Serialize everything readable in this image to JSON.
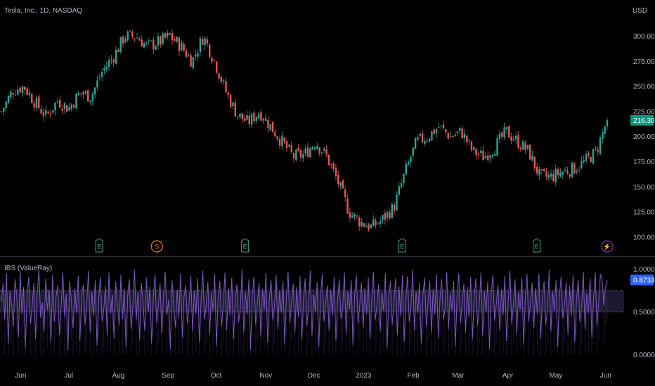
{
  "header": {
    "title": "Tesla, Inc., 1D, NASDAQ",
    "currency": "USD"
  },
  "colors": {
    "up": "#26a69a",
    "down": "#ef5350",
    "indicator": "#7e57c2",
    "band": "#1b1a2e",
    "last_price_bg": "#089981",
    "ibs_badge_bg": "#2962ff",
    "dividend": "#f57c00",
    "split": "#9c27b0"
  },
  "chart_data": [
    {
      "type": "candlestick",
      "title": "Tesla, Inc., 1D, NASDAQ",
      "ylabel": "USD",
      "ylim": [
        95,
        322
      ],
      "yticks": [
        "100.00",
        "125.00",
        "150.00",
        "175.00",
        "200.00",
        "225.00",
        "250.00",
        "275.00",
        "300.00"
      ],
      "last_price": "216.30",
      "close_path": [
        [
          "2022-05-20",
          225
        ],
        [
          "2022-05-27",
          246
        ],
        [
          "2022-06-03",
          250
        ],
        [
          "2022-06-10",
          234
        ],
        [
          "2022-06-17",
          220
        ],
        [
          "2022-06-24",
          236
        ],
        [
          "2022-07-01",
          228
        ],
        [
          "2022-07-08",
          244
        ],
        [
          "2022-07-15",
          240
        ],
        [
          "2022-07-22",
          265
        ],
        [
          "2022-07-29",
          280
        ],
        [
          "2022-08-05",
          300
        ],
        [
          "2022-08-12",
          300
        ],
        [
          "2022-08-19",
          290
        ],
        [
          "2022-08-26",
          294
        ],
        [
          "2022-09-02",
          300
        ],
        [
          "2022-09-09",
          290
        ],
        [
          "2022-09-16",
          275
        ],
        [
          "2022-09-23",
          300
        ],
        [
          "2022-09-30",
          275
        ],
        [
          "2022-10-07",
          245
        ],
        [
          "2022-10-14",
          222
        ],
        [
          "2022-10-21",
          214
        ],
        [
          "2022-10-28",
          225
        ],
        [
          "2022-11-04",
          210
        ],
        [
          "2022-11-11",
          195
        ],
        [
          "2022-11-18",
          180
        ],
        [
          "2022-11-25",
          182
        ],
        [
          "2022-12-02",
          195
        ],
        [
          "2022-12-09",
          180
        ],
        [
          "2022-12-16",
          155
        ],
        [
          "2022-12-23",
          125
        ],
        [
          "2022-12-30",
          115
        ],
        [
          "2023-01-06",
          110
        ],
        [
          "2023-01-13",
          118
        ],
        [
          "2023-01-20",
          130
        ],
        [
          "2023-01-27",
          165
        ],
        [
          "2023-02-03",
          195
        ],
        [
          "2023-02-10",
          200
        ],
        [
          "2023-02-17",
          210
        ],
        [
          "2023-02-24",
          200
        ],
        [
          "2023-03-03",
          205
        ],
        [
          "2023-03-10",
          185
        ],
        [
          "2023-03-17",
          180
        ],
        [
          "2023-03-24",
          190
        ],
        [
          "2023-03-31",
          205
        ],
        [
          "2023-04-07",
          195
        ],
        [
          "2023-04-14",
          185
        ],
        [
          "2023-04-21",
          160
        ],
        [
          "2023-04-28",
          160
        ],
        [
          "2023-05-05",
          165
        ],
        [
          "2023-05-12",
          168
        ],
        [
          "2023-05-19",
          175
        ],
        [
          "2023-05-26",
          185
        ],
        [
          "2023-06-02",
          216.3
        ]
      ],
      "events": [
        {
          "date": "2022-07-20",
          "type": "earnings",
          "label": "E"
        },
        {
          "date": "2022-08-25",
          "type": "dividend",
          "label": "S"
        },
        {
          "date": "2022-10-19",
          "type": "earnings",
          "label": "E"
        },
        {
          "date": "2023-01-25",
          "type": "earnings",
          "label": "E"
        },
        {
          "date": "2023-04-19",
          "type": "earnings",
          "label": "E"
        },
        {
          "date": "2023-06-02",
          "type": "split",
          "label": "⚡"
        }
      ]
    },
    {
      "type": "line",
      "title": "IBS (ValueRay)",
      "ylim": [
        -0.02,
        1.02
      ],
      "yticks": [
        "0.0000",
        "0.5000",
        "1.0000"
      ],
      "last_value": "0.8733",
      "upper_band": 0.75,
      "lower_band": 0.5,
      "series": [
        {
          "values": [
            0.62,
            0.83,
            0.41,
            0.95,
            0.12,
            0.74,
            0.58,
            0.33,
            0.88,
            0.69,
            0.21,
            0.97,
            0.47,
            0.79,
            0.08,
            0.66,
            0.91,
            0.36,
            0.55,
            0.84,
            0.18,
            0.72,
            0.99,
            0.43,
            0.61,
            0.27,
            0.89,
            0.52,
            0.76,
            0.14,
            0.93,
            0.38,
            0.67,
            0.81,
            0.23,
            0.57,
            0.96,
            0.44,
            0.71,
            0.05,
            0.86,
            0.63,
            0.31,
            0.78,
            0.49,
            0.92,
            0.16,
            0.68,
            0.82,
            0.35,
            0.59,
            0.98,
            0.26,
            0.74,
            0.45,
            0.87,
            0.11,
            0.65,
            0.91,
            0.39,
            0.53,
            0.8,
            0.22,
            0.96,
            0.48,
            0.7,
            0.19,
            0.85,
            0.6,
            0.34,
            0.93,
            0.42,
            0.77,
            0.09,
            0.69,
            0.88,
            0.3,
            0.56,
            0.99,
            0.4,
            0.73,
            0.17,
            0.84,
            0.62,
            0.28,
            0.9,
            0.5,
            0.79,
            0.13,
            0.66,
            0.94,
            0.37,
            0.58,
            0.83,
            0.24,
            0.71,
            0.97,
            0.46,
            0.64,
            0.07,
            0.87,
            0.55,
            0.32,
            0.76,
            0.43,
            0.95,
            0.2,
            0.68,
            0.81,
            0.36,
            0.6,
            0.92,
            0.27,
            0.75,
            0.48,
            0.89,
            0.15,
            0.63,
            0.98,
            0.41,
            0.57,
            0.85,
            0.23,
            0.72,
            0.51,
            0.94,
            0.1,
            0.67,
            0.86,
            0.33,
            0.59,
            0.96,
            0.29,
            0.78,
            0.45,
            0.9,
            0.18,
            0.65,
            0.82,
            0.38,
            0.54,
            0.99,
            0.25,
            0.73,
            0.47,
            0.88,
            0.06,
            0.7,
            0.91,
            0.35,
            0.61,
            0.84,
            0.21,
            0.77,
            0.52,
            0.95,
            0.14,
            0.66,
            0.87,
            0.4,
            0.56,
            0.93,
            0.3,
            0.74,
            0.49,
            0.86,
            0.12,
            0.69,
            0.97,
            0.37,
            0.62,
            0.83,
            0.26,
            0.79,
            0.44,
            0.92,
            0.17,
            0.64,
            0.89,
            0.34,
            0.58,
            0.98,
            0.22,
            0.71,
            0.5,
            0.85,
            0.09,
            0.68,
            0.94,
            0.39,
            0.6,
            0.81,
            0.28,
            0.76,
            0.46,
            0.91,
            0.16,
            0.63,
            0.88,
            0.42,
            0.55,
            0.96,
            0.24,
            0.75,
            0.53,
            0.87,
            0.11,
            0.7,
            0.93,
            0.36,
            0.59,
            0.84,
            0.31,
            0.78,
            0.48,
            0.9,
            0.19,
            0.66,
            0.97,
            0.4,
            0.57,
            0.82,
            0.27,
            0.73,
            0.51,
            0.95,
            0.08,
            0.67,
            0.86,
            0.35,
            0.61,
            0.89,
            0.23,
            0.8,
            0.45,
            0.93,
            0.15,
            0.64,
            0.92,
            0.38,
            0.56,
            0.99,
            0.29,
            0.74,
            0.49,
            0.84,
            0.13,
            0.69,
            0.9,
            0.33,
            0.62,
            0.87,
            0.25,
            0.77,
            0.47,
            0.94,
            0.2,
            0.65,
            0.88,
            0.41,
            0.54,
            0.97,
            0.3,
            0.72,
            0.52,
            0.86,
            0.1,
            0.68,
            0.95,
            0.37,
            0.6,
            0.83,
            0.26,
            0.79,
            0.44,
            0.91,
            0.18,
            0.66,
            0.89,
            0.34,
            0.58,
            0.96,
            0.22,
            0.75,
            0.5,
            0.85,
            0.07,
            0.7,
            0.93,
            0.4,
            0.59,
            0.82,
            0.28,
            0.76,
            0.46,
            0.92,
            0.16,
            0.63,
            0.98,
            0.36,
            0.57,
            0.88,
            0.24,
            0.73,
            0.53,
            0.9,
            0.12,
            0.67,
            0.94,
            0.39,
            0.61,
            0.84,
            0.31,
            0.78,
            0.48,
            0.95,
            0.19,
            0.65,
            0.86,
            0.35,
            0.55,
            0.99,
            0.27,
            0.74,
            0.51,
            0.87,
            0.09,
            0.69,
            0.91,
            0.42,
            0.6,
            0.85,
            0.23,
            0.8,
            0.45,
            0.93,
            0.14,
            0.64,
            0.87,
            0.38,
            0.56,
            0.97,
            0.3,
            0.72,
            0.49,
            0.89,
            0.2,
            0.66,
            0.96,
            0.33,
            0.62,
            0.94,
            0.88,
            0.58,
            0.79,
            0.87
          ]
        }
      ]
    }
  ],
  "xaxis": {
    "labels": [
      "Jun",
      "Jul",
      "Aug",
      "Sep",
      "Oct",
      "Nov",
      "Dec",
      "2023",
      "Feb",
      "Mar",
      "Apr",
      "May",
      "Jun"
    ],
    "dates": [
      "2022-06-01",
      "2022-07-01",
      "2022-08-01",
      "2022-09-01",
      "2022-10-01",
      "2022-11-01",
      "2022-12-01",
      "2023-01-01",
      "2023-02-01",
      "2023-03-01",
      "2023-04-01",
      "2023-05-01",
      "2023-06-01"
    ]
  }
}
